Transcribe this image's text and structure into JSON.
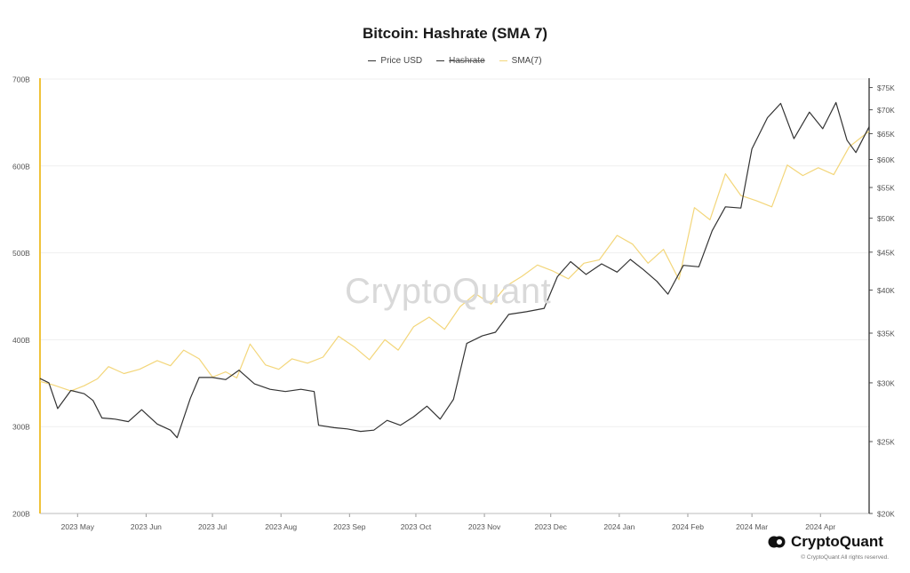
{
  "chart_data": {
    "type": "line",
    "title": "Bitcoin: Hashrate (SMA 7)",
    "legend": {
      "placement": "top-center",
      "entries": [
        {
          "label": "Price USD",
          "color": "#333333",
          "hidden": false
        },
        {
          "label": "Hashrate",
          "color": "#333333",
          "hidden": true
        },
        {
          "label": "SMA(7)",
          "color": "#f3d67a",
          "hidden": false
        }
      ]
    },
    "x_ticks": [
      "2023 May",
      "2023 Jun",
      "2023 Jul",
      "2023 Aug",
      "2023 Sep",
      "2023 Oct",
      "2023 Nov",
      "2023 Dec",
      "2024 Jan",
      "2024 Feb",
      "2024 Mar",
      "2024 Apr"
    ],
    "x_range": [
      "2023-04-14",
      "2024-04-23"
    ],
    "y_left": {
      "range": [
        200,
        700
      ],
      "unit": "B",
      "ticks": [
        "700B",
        "600B",
        "500B",
        "400B",
        "300B",
        "200B"
      ],
      "tick_values": [
        700,
        600,
        500,
        400,
        300,
        200
      ]
    },
    "y_right": {
      "scale": "log",
      "range": [
        20000,
        77000
      ],
      "ticks": [
        "$75K",
        "$70K",
        "$65K",
        "$60K",
        "$55K",
        "$50K",
        "$45K",
        "$40K",
        "$35K",
        "$30K",
        "$25K",
        "$20K"
      ],
      "tick_values": [
        75000,
        70000,
        65000,
        60000,
        55000,
        50000,
        45000,
        40000,
        35000,
        30000,
        25000,
        20000
      ]
    },
    "grid": true,
    "series": [
      {
        "name": "SMA(7)",
        "axis": "left",
        "color": "#f3d67a",
        "points": [
          [
            "2023-04-14",
            352
          ],
          [
            "2023-04-20",
            348
          ],
          [
            "2023-04-28",
            341
          ],
          [
            "2023-05-04",
            347
          ],
          [
            "2023-05-10",
            355
          ],
          [
            "2023-05-15",
            369
          ],
          [
            "2023-05-22",
            361
          ],
          [
            "2023-05-29",
            366
          ],
          [
            "2023-06-06",
            376
          ],
          [
            "2023-06-12",
            370
          ],
          [
            "2023-06-18",
            388
          ],
          [
            "2023-06-25",
            378
          ],
          [
            "2023-07-01",
            357
          ],
          [
            "2023-07-07",
            363
          ],
          [
            "2023-07-12",
            356
          ],
          [
            "2023-07-18",
            395
          ],
          [
            "2023-07-25",
            371
          ],
          [
            "2023-07-31",
            366
          ],
          [
            "2023-08-06",
            378
          ],
          [
            "2023-08-13",
            373
          ],
          [
            "2023-08-20",
            380
          ],
          [
            "2023-08-27",
            404
          ],
          [
            "2023-09-03",
            392
          ],
          [
            "2023-09-10",
            377
          ],
          [
            "2023-09-17",
            400
          ],
          [
            "2023-09-23",
            388
          ],
          [
            "2023-09-30",
            415
          ],
          [
            "2023-10-07",
            426
          ],
          [
            "2023-10-14",
            412
          ],
          [
            "2023-10-21",
            438
          ],
          [
            "2023-10-28",
            453
          ],
          [
            "2023-11-04",
            441
          ],
          [
            "2023-11-11",
            462
          ],
          [
            "2023-11-18",
            473
          ],
          [
            "2023-11-25",
            486
          ],
          [
            "2023-12-02",
            479
          ],
          [
            "2023-12-09",
            470
          ],
          [
            "2023-12-16",
            488
          ],
          [
            "2023-12-23",
            492
          ],
          [
            "2023-12-31",
            520
          ],
          [
            "2024-01-07",
            510
          ],
          [
            "2024-01-14",
            488
          ],
          [
            "2024-01-21",
            504
          ],
          [
            "2024-01-28",
            469
          ],
          [
            "2024-02-04",
            552
          ],
          [
            "2024-02-11",
            538
          ],
          [
            "2024-02-18",
            591
          ],
          [
            "2024-02-25",
            566
          ],
          [
            "2024-03-03",
            560
          ],
          [
            "2024-03-10",
            553
          ],
          [
            "2024-03-17",
            601
          ],
          [
            "2024-03-24",
            589
          ],
          [
            "2024-03-31",
            598
          ],
          [
            "2024-04-07",
            590
          ],
          [
            "2024-04-14",
            622
          ],
          [
            "2024-04-19",
            632
          ],
          [
            "2024-04-23",
            640
          ]
        ]
      },
      {
        "name": "Price USD",
        "axis": "right",
        "color": "#333333",
        "points": [
          [
            "2023-04-14",
            30400
          ],
          [
            "2023-04-18",
            30000
          ],
          [
            "2023-04-22",
            27700
          ],
          [
            "2023-04-28",
            29300
          ],
          [
            "2023-05-04",
            29000
          ],
          [
            "2023-05-08",
            28400
          ],
          [
            "2023-05-12",
            26900
          ],
          [
            "2023-05-18",
            26800
          ],
          [
            "2023-05-24",
            26600
          ],
          [
            "2023-05-30",
            27600
          ],
          [
            "2023-06-06",
            26400
          ],
          [
            "2023-06-12",
            25900
          ],
          [
            "2023-06-15",
            25300
          ],
          [
            "2023-06-21",
            28600
          ],
          [
            "2023-06-25",
            30500
          ],
          [
            "2023-07-01",
            30500
          ],
          [
            "2023-07-07",
            30300
          ],
          [
            "2023-07-13",
            31200
          ],
          [
            "2023-07-20",
            29900
          ],
          [
            "2023-07-27",
            29400
          ],
          [
            "2023-08-03",
            29200
          ],
          [
            "2023-08-10",
            29400
          ],
          [
            "2023-08-16",
            29200
          ],
          [
            "2023-08-18",
            26300
          ],
          [
            "2023-08-25",
            26100
          ],
          [
            "2023-08-31",
            26000
          ],
          [
            "2023-09-06",
            25800
          ],
          [
            "2023-09-12",
            25900
          ],
          [
            "2023-09-18",
            26700
          ],
          [
            "2023-09-24",
            26300
          ],
          [
            "2023-09-30",
            27000
          ],
          [
            "2023-10-06",
            27900
          ],
          [
            "2023-10-12",
            26800
          ],
          [
            "2023-10-18",
            28500
          ],
          [
            "2023-10-24",
            33900
          ],
          [
            "2023-10-31",
            34700
          ],
          [
            "2023-11-06",
            35100
          ],
          [
            "2023-11-12",
            37100
          ],
          [
            "2023-11-20",
            37400
          ],
          [
            "2023-11-28",
            37800
          ],
          [
            "2023-12-04",
            41700
          ],
          [
            "2023-12-10",
            43700
          ],
          [
            "2023-12-17",
            42000
          ],
          [
            "2023-12-24",
            43400
          ],
          [
            "2023-12-31",
            42300
          ],
          [
            "2024-01-06",
            44000
          ],
          [
            "2024-01-12",
            42600
          ],
          [
            "2024-01-18",
            41100
          ],
          [
            "2024-01-23",
            39500
          ],
          [
            "2024-01-30",
            43200
          ],
          [
            "2024-02-06",
            43000
          ],
          [
            "2024-02-12",
            48100
          ],
          [
            "2024-02-18",
            51800
          ],
          [
            "2024-02-25",
            51600
          ],
          [
            "2024-03-01",
            62000
          ],
          [
            "2024-03-08",
            68300
          ],
          [
            "2024-03-14",
            71400
          ],
          [
            "2024-03-20",
            64000
          ],
          [
            "2024-03-27",
            69500
          ],
          [
            "2024-04-02",
            66000
          ],
          [
            "2024-04-08",
            71600
          ],
          [
            "2024-04-13",
            63700
          ],
          [
            "2024-04-17",
            61300
          ],
          [
            "2024-04-23",
            66400
          ]
        ]
      }
    ]
  },
  "watermark": "CryptoQuant",
  "brand": {
    "name": "CryptoQuant",
    "copyright": "© CryptoQuant All rights reserved."
  }
}
